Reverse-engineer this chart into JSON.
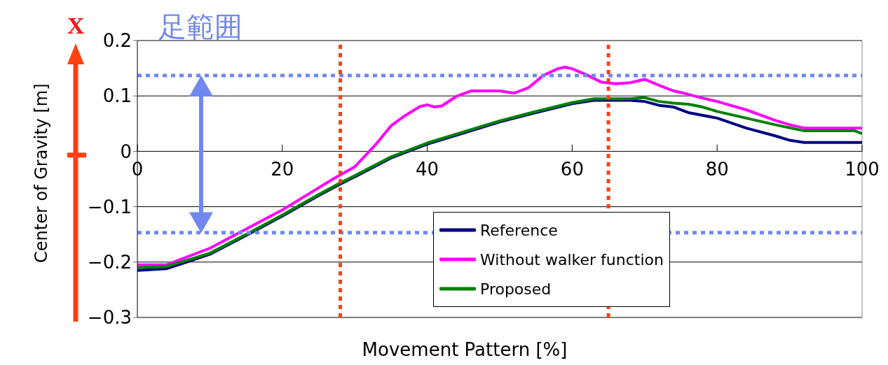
{
  "chart_data": {
    "type": "line",
    "xlabel": "Movement Pattern [%]",
    "ylabel": "Center of Gravity [m]",
    "annotations": [
      "X",
      "足範囲"
    ],
    "xlim": [
      0,
      100
    ],
    "xticks": [
      0,
      20,
      40,
      60,
      80,
      100
    ],
    "ylim": [
      -0.3,
      0.2
    ],
    "yticks": [
      -0.3,
      -0.2,
      -0.1,
      0,
      0.1,
      0.2
    ],
    "grid": "y",
    "legend": "bottom",
    "marker": "none",
    "line_style": "solid",
    "series": [
      {
        "name": "Reference",
        "color": "#000080",
        "x": [
          0,
          4,
          10,
          15,
          20,
          25,
          28,
          30,
          35,
          40,
          45,
          50,
          55,
          60,
          63,
          65,
          68,
          70,
          72,
          74,
          76,
          80,
          84,
          88,
          90,
          92,
          100
        ],
        "values": [
          -0.215,
          -0.212,
          -0.186,
          -0.152,
          -0.117,
          -0.08,
          -0.059,
          -0.046,
          -0.012,
          0.013,
          0.033,
          0.053,
          0.07,
          0.086,
          0.092,
          0.092,
          0.092,
          0.09,
          0.083,
          0.08,
          0.07,
          0.06,
          0.042,
          0.028,
          0.02,
          0.016,
          0.016
        ]
      },
      {
        "name": "Without walker function",
        "color": "#ff00ff",
        "x": [
          0,
          4,
          10,
          20,
          27,
          30,
          33,
          35,
          37,
          39,
          40,
          41,
          42,
          44,
          46,
          50,
          52,
          54,
          56,
          58,
          59,
          60,
          62,
          64,
          66,
          68,
          70,
          72,
          74,
          76,
          78,
          80,
          84,
          88,
          90,
          92,
          100
        ],
        "values": [
          -0.205,
          -0.205,
          -0.175,
          -0.106,
          -0.05,
          -0.028,
          0.014,
          0.046,
          0.065,
          0.081,
          0.084,
          0.08,
          0.082,
          0.099,
          0.109,
          0.109,
          0.105,
          0.115,
          0.137,
          0.149,
          0.152,
          0.149,
          0.138,
          0.125,
          0.122,
          0.124,
          0.13,
          0.119,
          0.109,
          0.103,
          0.096,
          0.09,
          0.075,
          0.056,
          0.048,
          0.042,
          0.042
        ]
      },
      {
        "name": "Proposed",
        "color": "#008000",
        "x": [
          0,
          4,
          10,
          15,
          20,
          25,
          28,
          30,
          35,
          40,
          45,
          50,
          55,
          60,
          63,
          65,
          68,
          70,
          72,
          74,
          76,
          78,
          80,
          84,
          88,
          92,
          99,
          100
        ],
        "values": [
          -0.21,
          -0.208,
          -0.184,
          -0.15,
          -0.115,
          -0.078,
          -0.057,
          -0.044,
          -0.01,
          0.015,
          0.035,
          0.055,
          0.072,
          0.088,
          0.095,
          0.095,
          0.095,
          0.097,
          0.09,
          0.087,
          0.085,
          0.08,
          0.072,
          0.06,
          0.048,
          0.037,
          0.037,
          0.032
        ]
      }
    ],
    "ref_lines": [
      {
        "axis": "y",
        "value": 0.137,
        "color": "#7088f0",
        "line_style": "dotted"
      },
      {
        "axis": "y",
        "value": -0.147,
        "color": "#7088f0",
        "line_style": "dotted"
      },
      {
        "axis": "x",
        "value": 28,
        "color": "#ff4010",
        "line_style": "dotted"
      },
      {
        "axis": "x",
        "value": 65,
        "color": "#ff4010",
        "line_style": "dotted"
      }
    ]
  }
}
